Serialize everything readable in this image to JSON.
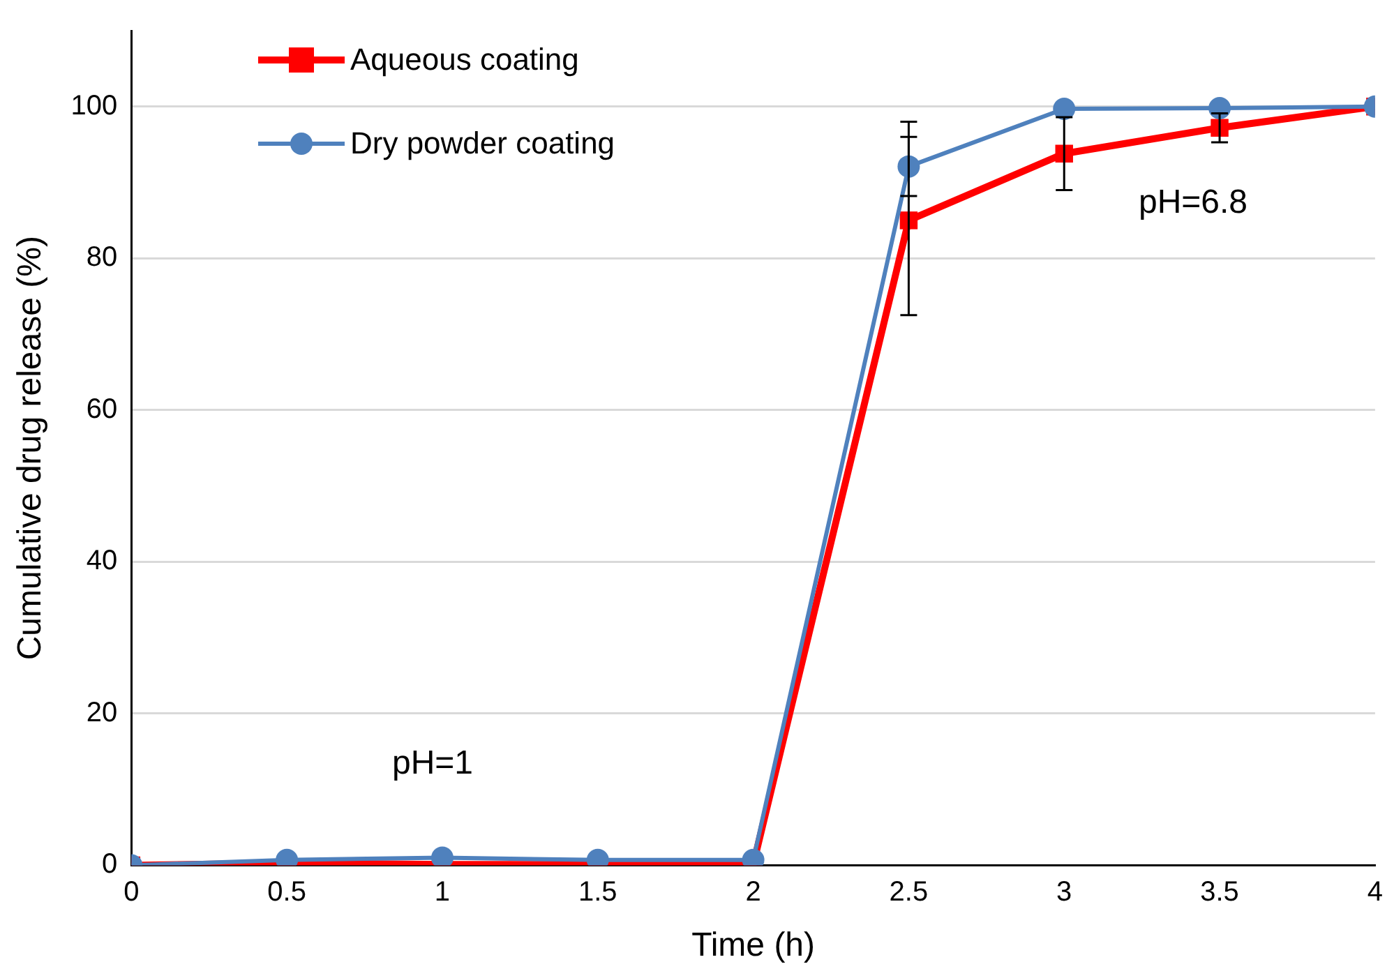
{
  "chart_data": {
    "type": "line",
    "xlabel": "Time (h)",
    "ylabel": "Cumulative drug release (%)",
    "x": [
      0,
      0.5,
      1,
      1.5,
      2,
      2.5,
      3,
      3.5,
      4
    ],
    "xlim": [
      0,
      4
    ],
    "xticks": [
      0,
      0.5,
      1,
      1.5,
      2,
      2.5,
      3,
      3.5,
      4
    ],
    "ylim": [
      0,
      110
    ],
    "yticks": [
      0,
      20,
      40,
      60,
      80,
      100
    ],
    "grid": "y",
    "legend": "top left",
    "series": [
      {
        "name": "Aqueous coating",
        "color": "#ff0000",
        "marker": "square",
        "values": [
          0,
          0.3,
          0.1,
          0.1,
          0.1,
          85,
          93.8,
          97.2,
          100
        ],
        "errors": [
          null,
          null,
          null,
          null,
          null,
          [
            72.5,
            98
          ],
          4.8,
          1.9,
          null
        ]
      },
      {
        "name": "Dry powder coating",
        "color": "#4f81bd",
        "marker": "circle",
        "values": [
          0,
          0.7,
          1,
          0.7,
          0.7,
          92.1,
          99.7,
          99.8,
          100
        ],
        "errors": [
          null,
          null,
          null,
          null,
          null,
          3.9,
          null,
          null,
          null
        ]
      }
    ],
    "annotations": [
      "pH=1",
      "pH=6.8"
    ]
  }
}
